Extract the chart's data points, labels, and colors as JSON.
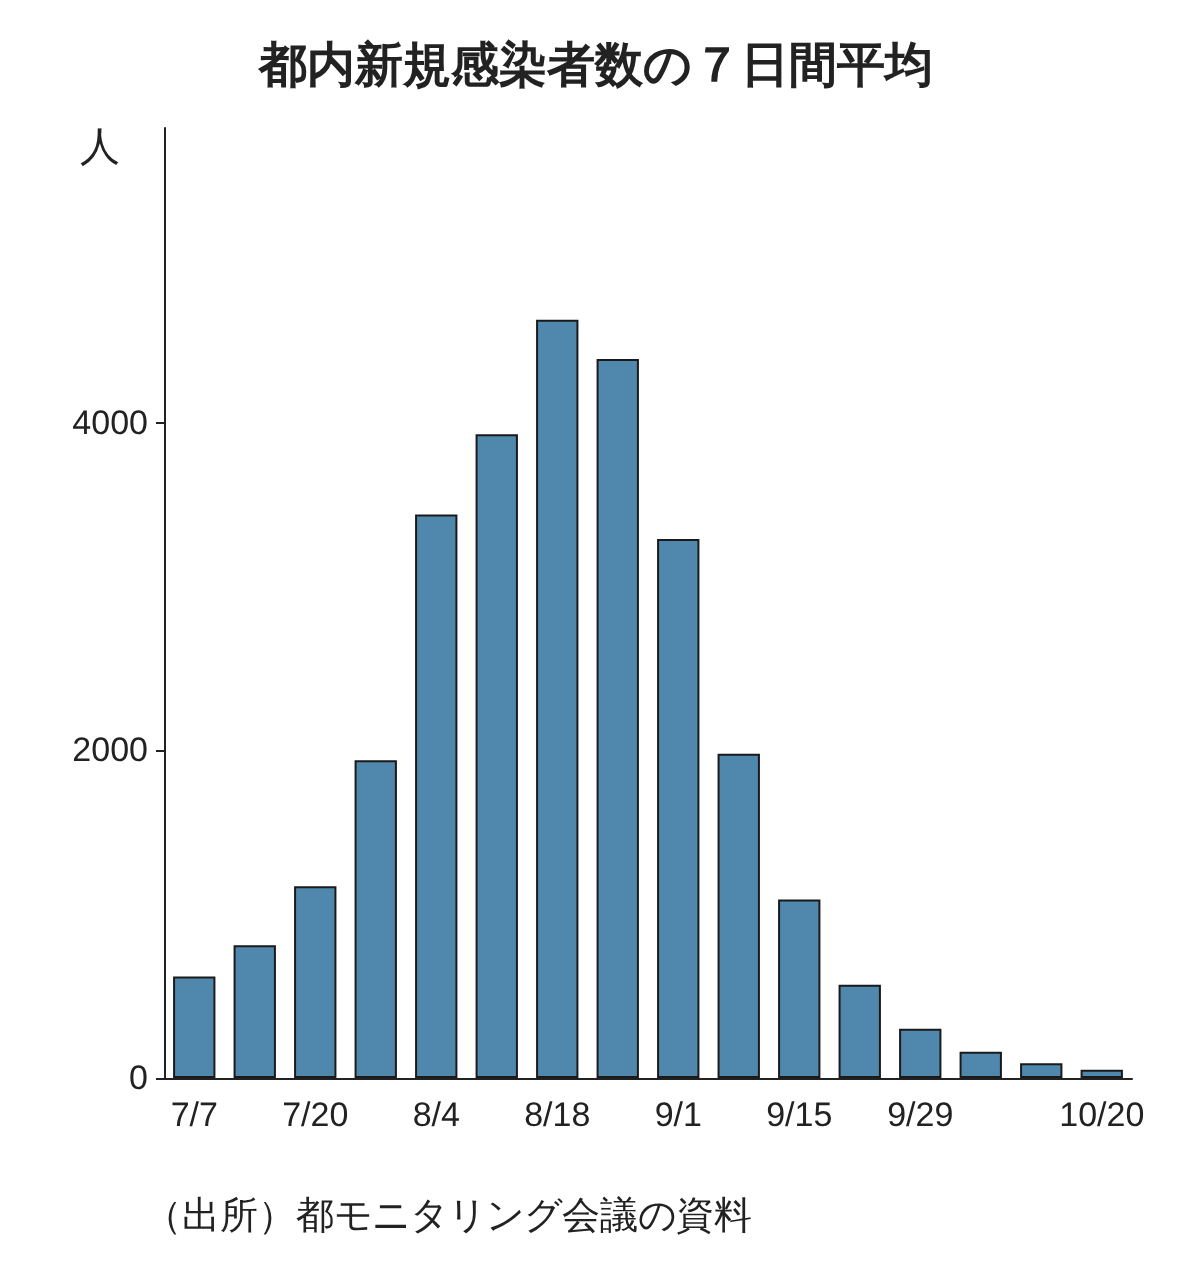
{
  "chart_data": {
    "type": "bar",
    "title": "都内新規感染者数の７日間平均",
    "ylabel": "人",
    "categories": [
      "7/7",
      null,
      "7/20",
      null,
      "8/4",
      null,
      "8/18",
      null,
      "9/1",
      null,
      "9/15",
      null,
      "9/29",
      null,
      null,
      "10/20"
    ],
    "values": [
      620,
      810,
      1170,
      1940,
      3440,
      3930,
      4630,
      4390,
      3290,
      1980,
      1090,
      570,
      300,
      160,
      90,
      50
    ],
    "color": "#4f87ad",
    "ylim": [
      0,
      5800
    ],
    "yticks": [
      0,
      2000,
      4000
    ],
    "grid": false,
    "annotations": [
      "（出所）都モニタリング会議の資料"
    ]
  }
}
